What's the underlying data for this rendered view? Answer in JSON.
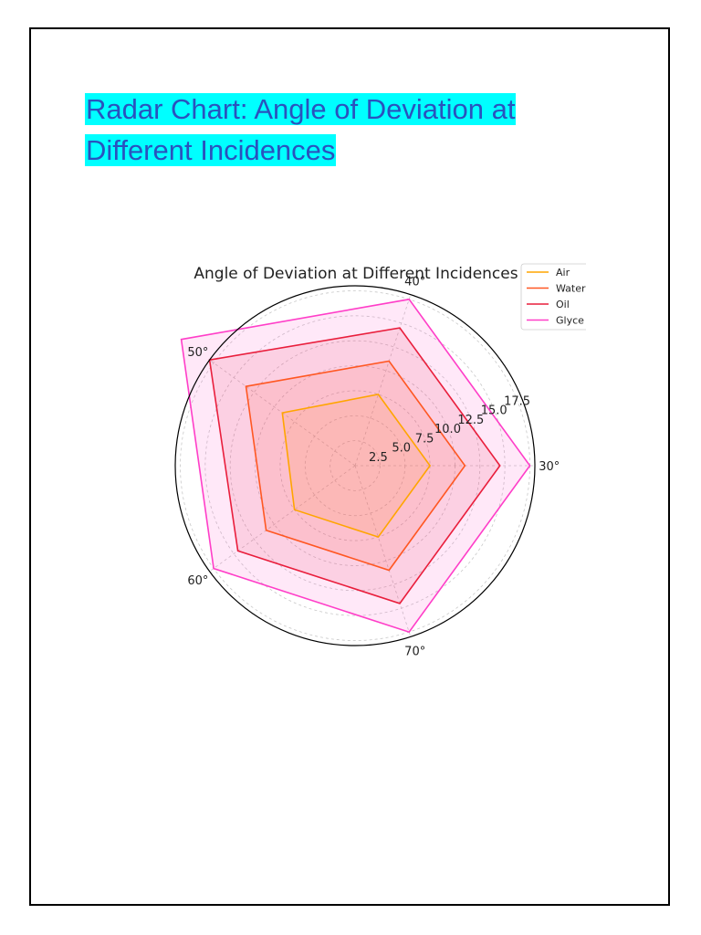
{
  "document": {
    "title_line1": "Radar Chart: Angle of Deviation at",
    "title_line2": "Different Incidences",
    "highlight_color": "#00ffff",
    "title_color": "#2a52be"
  },
  "chart_data": {
    "type": "radar",
    "title": "Angle of Deviation at Different Incidences",
    "categories": [
      "30°",
      "40°",
      "50°",
      "60°",
      "70°"
    ],
    "radial_ticks": [
      "2.5",
      "5.0",
      "7.5",
      "10.0",
      "12.5",
      "15.0",
      "17.5"
    ],
    "radial_tick_values": [
      2.5,
      5.0,
      7.5,
      10.0,
      12.5,
      15.0,
      17.5
    ],
    "rlim": [
      0,
      18
    ],
    "grid": true,
    "legend_position": "top-right",
    "series": [
      {
        "name": "Air",
        "color": "#ffa500",
        "values": [
          7.5,
          7.5,
          9.0,
          7.5,
          7.5
        ]
      },
      {
        "name": "Water",
        "color": "#ff5722",
        "values": [
          11.0,
          11.0,
          13.5,
          11.0,
          11.0
        ]
      },
      {
        "name": "Oil",
        "color": "#e91e3c",
        "values": [
          14.5,
          14.5,
          18.0,
          14.5,
          14.5
        ]
      },
      {
        "name": "Glyce",
        "color": "#ff3ec8",
        "values": [
          17.5,
          17.5,
          21.5,
          17.5,
          17.5
        ]
      }
    ]
  }
}
